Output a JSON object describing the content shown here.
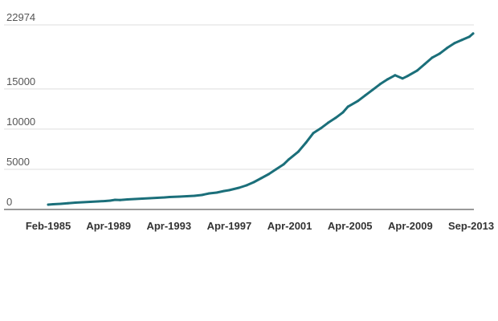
{
  "chart_data": {
    "type": "line",
    "title": "",
    "xlabel": "",
    "ylabel": "",
    "ylim": [
      0,
      22974
    ],
    "yticks": [
      {
        "value": 0,
        "label": "0"
      },
      {
        "value": 5000,
        "label": "5000"
      },
      {
        "value": 10000,
        "label": "10000"
      },
      {
        "value": 15000,
        "label": "15000"
      },
      {
        "value": 22974,
        "label": "22974"
      }
    ],
    "xticks": [
      "Feb-1985",
      "Apr-1989",
      "Apr-1993",
      "Apr-1997",
      "Apr-2001",
      "Apr-2005",
      "Apr-2009",
      "Sep-2013"
    ],
    "grid": true,
    "legend": "none",
    "line_color": "#1b6f7a",
    "series": [
      {
        "x": [
          "1985-02",
          "1985-06",
          "1985-12",
          "1986-06",
          "1986-12",
          "1987-06",
          "1987-12",
          "1988-06",
          "1988-12",
          "1989-04",
          "1989-08",
          "1989-12",
          "1990-06",
          "1990-12",
          "1991-06",
          "1991-12",
          "1992-06",
          "1992-12",
          "1993-04",
          "1993-12",
          "1994-06",
          "1994-12",
          "1995-06",
          "1995-12",
          "1996-06",
          "1996-12",
          "1997-04",
          "1997-12",
          "1998-06",
          "1998-12",
          "1999-06",
          "1999-12",
          "2000-06",
          "2000-12",
          "2001-04",
          "2001-12",
          "2002-06",
          "2002-12",
          "2003-06",
          "2003-12",
          "2004-06",
          "2004-12",
          "2005-04",
          "2005-12",
          "2006-06",
          "2006-12",
          "2007-06",
          "2007-12",
          "2008-06",
          "2008-12",
          "2009-04",
          "2009-12",
          "2010-06",
          "2010-12",
          "2011-06",
          "2011-12",
          "2012-06",
          "2012-12",
          "2013-06",
          "2013-09"
        ],
        "values": [
          600,
          650,
          700,
          780,
          850,
          900,
          950,
          1000,
          1050,
          1100,
          1200,
          1180,
          1250,
          1300,
          1350,
          1400,
          1450,
          1500,
          1550,
          1600,
          1650,
          1700,
          1800,
          2000,
          2100,
          2300,
          2400,
          2700,
          3000,
          3400,
          3900,
          4400,
          5000,
          5600,
          6200,
          7200,
          8300,
          9500,
          10100,
          10800,
          11400,
          12100,
          12800,
          13500,
          14200,
          14900,
          15600,
          16200,
          16700,
          16300,
          16600,
          17300,
          18100,
          18900,
          19400,
          20100,
          20700,
          21100,
          21500,
          21900
        ]
      }
    ]
  }
}
